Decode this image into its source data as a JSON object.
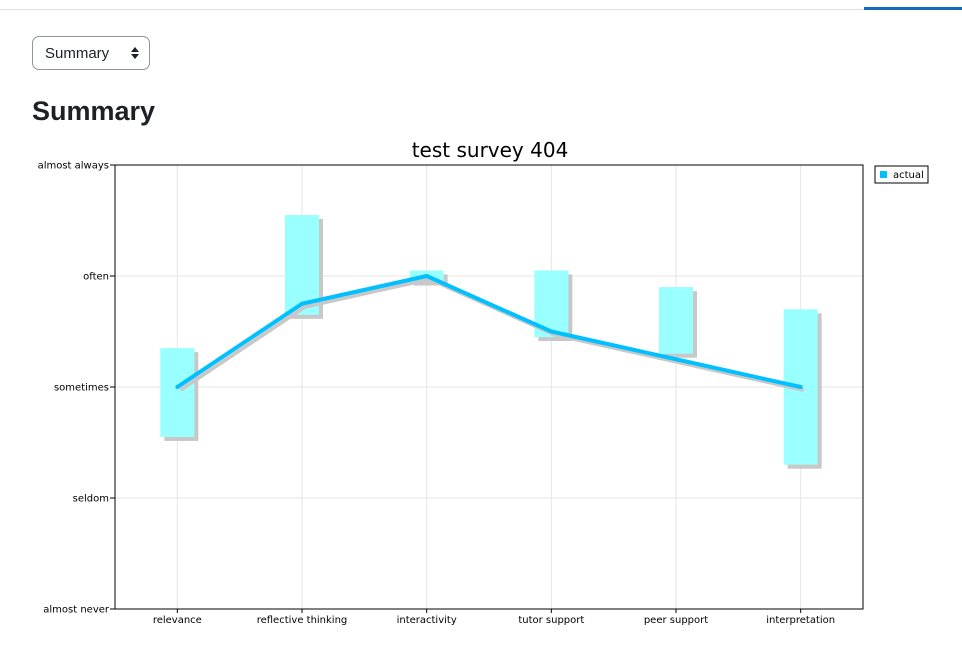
{
  "view_select": {
    "value": "Summary"
  },
  "page": {
    "heading": "Summary"
  },
  "chart_data": {
    "type": "line",
    "title": "test survey 404",
    "xlabel": "",
    "ylabel": "",
    "categories": [
      "relevance",
      "reflective thinking",
      "interactivity",
      "tutor support",
      "peer support",
      "interpretation"
    ],
    "y_tick_labels": [
      "almost never",
      "seldom",
      "sometimes",
      "often",
      "almost always"
    ],
    "ylim": [
      1,
      5
    ],
    "grid": true,
    "legend_position": "right",
    "series": [
      {
        "name": "actual",
        "values": [
          3.0,
          3.75,
          4.0,
          3.5,
          3.25,
          3.0
        ],
        "ranges": [
          [
            2.55,
            3.35
          ],
          [
            3.65,
            4.55
          ],
          [
            3.95,
            4.05
          ],
          [
            3.45,
            4.05
          ],
          [
            3.3,
            3.9
          ],
          [
            2.3,
            3.7
          ]
        ]
      }
    ],
    "colors": {
      "line": "#00c0ff",
      "range_bar": "#99ffff",
      "shadow": "#c8c8c8"
    }
  }
}
